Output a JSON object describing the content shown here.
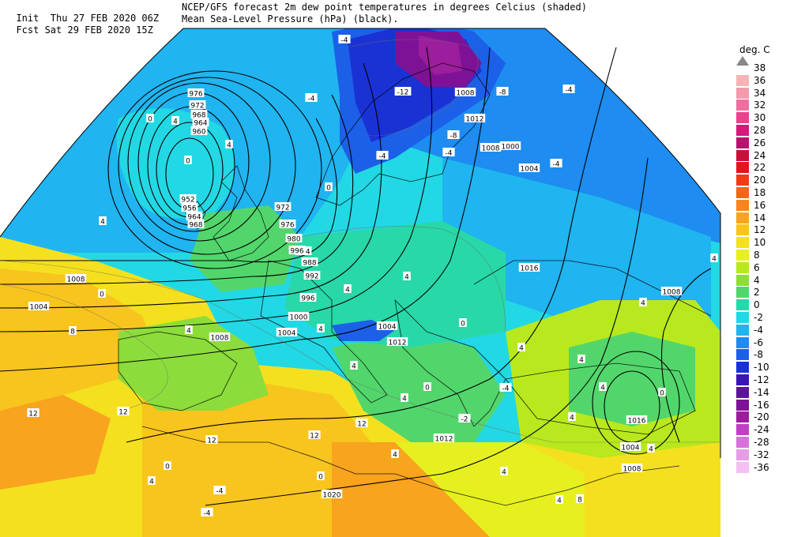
{
  "header": {
    "line1_left": "Init  Thu 27 FEB 2020 06Z",
    "line1_right": "NCEP/GFS forecast 2m dew point temperatures in degrees Celcius (shaded)",
    "line2_left": "Fcst Sat 29 FEB 2020 15Z",
    "line2_right": "Mean Sea-Level Pressure (hPa) (black)."
  },
  "legend": {
    "title": "deg. C",
    "items": [
      {
        "label": "38",
        "color": "#b0b0b0"
      },
      {
        "label": "36",
        "color": "#f7b4b4"
      },
      {
        "label": "34",
        "color": "#f49aae"
      },
      {
        "label": "32",
        "color": "#ef6fa0"
      },
      {
        "label": "30",
        "color": "#e8438c"
      },
      {
        "label": "28",
        "color": "#d6177c"
      },
      {
        "label": "26",
        "color": "#b8106e"
      },
      {
        "label": "24",
        "color": "#c8103a"
      },
      {
        "label": "22",
        "color": "#e4141e"
      },
      {
        "label": "20",
        "color": "#f03c14"
      },
      {
        "label": "18",
        "color": "#f4641a"
      },
      {
        "label": "16",
        "color": "#f8841e"
      },
      {
        "label": "14",
        "color": "#f8a41e"
      },
      {
        "label": "12",
        "color": "#f8c41e"
      },
      {
        "label": "10",
        "color": "#f4e01e"
      },
      {
        "label": "8",
        "color": "#e6f01e"
      },
      {
        "label": "6",
        "color": "#b8e81e"
      },
      {
        "label": "4",
        "color": "#8cdc3c"
      },
      {
        "label": "2",
        "color": "#52d66c"
      },
      {
        "label": "0",
        "color": "#28d8a8"
      },
      {
        "label": "-2",
        "color": "#22d8e4"
      },
      {
        "label": "-4",
        "color": "#20b4f0"
      },
      {
        "label": "-6",
        "color": "#1e8cf0"
      },
      {
        "label": "-8",
        "color": "#1c60e8"
      },
      {
        "label": "-10",
        "color": "#1a32d4"
      },
      {
        "label": "-12",
        "color": "#3a14b4"
      },
      {
        "label": "-14",
        "color": "#5c149e"
      },
      {
        "label": "-16",
        "color": "#7e1296"
      },
      {
        "label": "-20",
        "color": "#9c1e9c"
      },
      {
        "label": "-24",
        "color": "#c040c4"
      },
      {
        "label": "-28",
        "color": "#d870da"
      },
      {
        "label": "-32",
        "color": "#e89ce8"
      },
      {
        "label": "-36",
        "color": "#f4c0f4"
      }
    ]
  },
  "isobar_labels": [
    "976",
    "972",
    "968",
    "964",
    "960",
    "952",
    "956",
    "964",
    "968",
    "972",
    "976",
    "980",
    "984",
    "988",
    "992",
    "996",
    "1000",
    "1004",
    "1008",
    "1004",
    "1008",
    "1004",
    "1016",
    "1008",
    "1008",
    "1012",
    "1012",
    "1020",
    "1016",
    "1004",
    "1008",
    "1012",
    "1000",
    "1004",
    "1008",
    "996"
  ],
  "dewpoint_labels": [
    "-4",
    "-4",
    "-12",
    "-8",
    "-4",
    "-8",
    "-4",
    "-4",
    "-4",
    "0",
    "4",
    "0",
    "4",
    "0",
    "4",
    "4",
    "4",
    "0",
    "4",
    "-4",
    "4",
    "4",
    "0",
    "4",
    "4",
    "4",
    "4",
    "12",
    "12",
    "12",
    "12",
    "12",
    "4",
    "0",
    "-4",
    "-4",
    "0",
    "4",
    "4",
    "8",
    "4",
    "0",
    "0",
    "-2",
    "4",
    "4",
    "4",
    "4",
    "8"
  ]
}
